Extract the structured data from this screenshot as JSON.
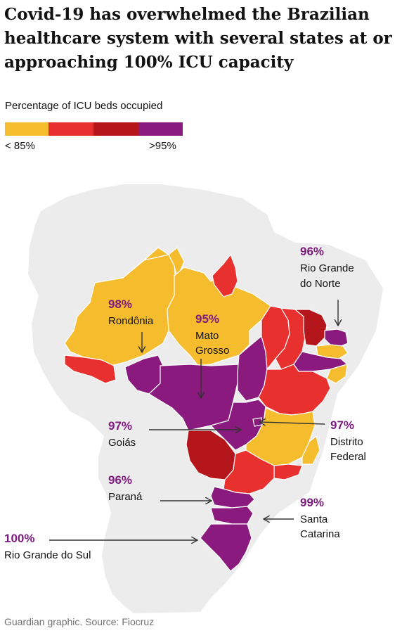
{
  "title": "Covid-19 has overwhelmed the Brazilian healthcare system with several states at or approaching 100% ICU capacity",
  "legend": {
    "title": "Percentage of ICU beds occupied",
    "low_label": "< 85%",
    "high_label": ">95%",
    "colors": [
      "#f5bc2e",
      "#e8302e",
      "#b5161b",
      "#8a1a7e"
    ]
  },
  "colors": {
    "land": "#ececec",
    "yellow": "#f5bc2e",
    "red": "#e8302e",
    "darkred": "#b5161b",
    "purple": "#8a1a7e"
  },
  "annotations": [
    {
      "id": "rondonia",
      "value": "98%",
      "state": "Rondônia"
    },
    {
      "id": "mato-grosso",
      "value": "95%",
      "state": "Mato Grosso"
    },
    {
      "id": "goias",
      "value": "97%",
      "state": "Goiás"
    },
    {
      "id": "parana",
      "value": "96%",
      "state": "Paraná"
    },
    {
      "id": "rio-grande-do-sul",
      "value": "100%",
      "state": "Rio Grande do Sul"
    },
    {
      "id": "rio-grande-do-norte",
      "value": "96%",
      "state": "Rio Grande do Norte"
    },
    {
      "id": "distrito-federal",
      "value": "97%",
      "state": "Distrito Federal"
    },
    {
      "id": "santa-catarina",
      "value": "99%",
      "state": "Santa Catarina"
    }
  ],
  "source": "Guardian graphic. Source: Fiocruz"
}
